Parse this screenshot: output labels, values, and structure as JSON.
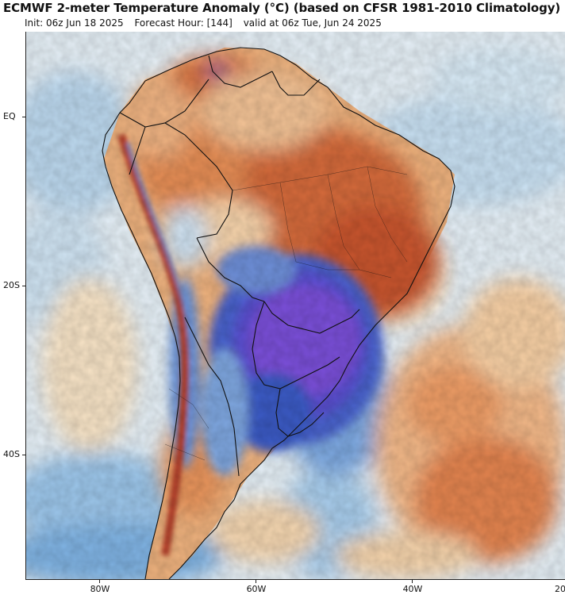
{
  "header": {
    "title": "ECMWF 2-meter Temperature Anomaly (°C) (based on CFSR 1981-2010 Climatology)",
    "init": "Init: 06z Jun 18 2025",
    "forecast_hour": "Forecast Hour: [144]",
    "valid": "valid at 06z Tue, Jun 24 2025"
  },
  "axes": {
    "lat_labels": [
      "EQ",
      "20S",
      "40S"
    ],
    "lon_labels": [
      "80W",
      "60W",
      "40W",
      "20"
    ]
  },
  "colors": {
    "ocean_base": "#e6f0f7",
    "warm_strong": "#c0502a",
    "warm_mid": "#e89a5e",
    "warm_light": "#f6d5a8",
    "cold_strong": "#6a3ec8",
    "cold_mid": "#3b5fc4",
    "cold_light": "#8fb6e4",
    "boundaries": "#111111"
  }
}
